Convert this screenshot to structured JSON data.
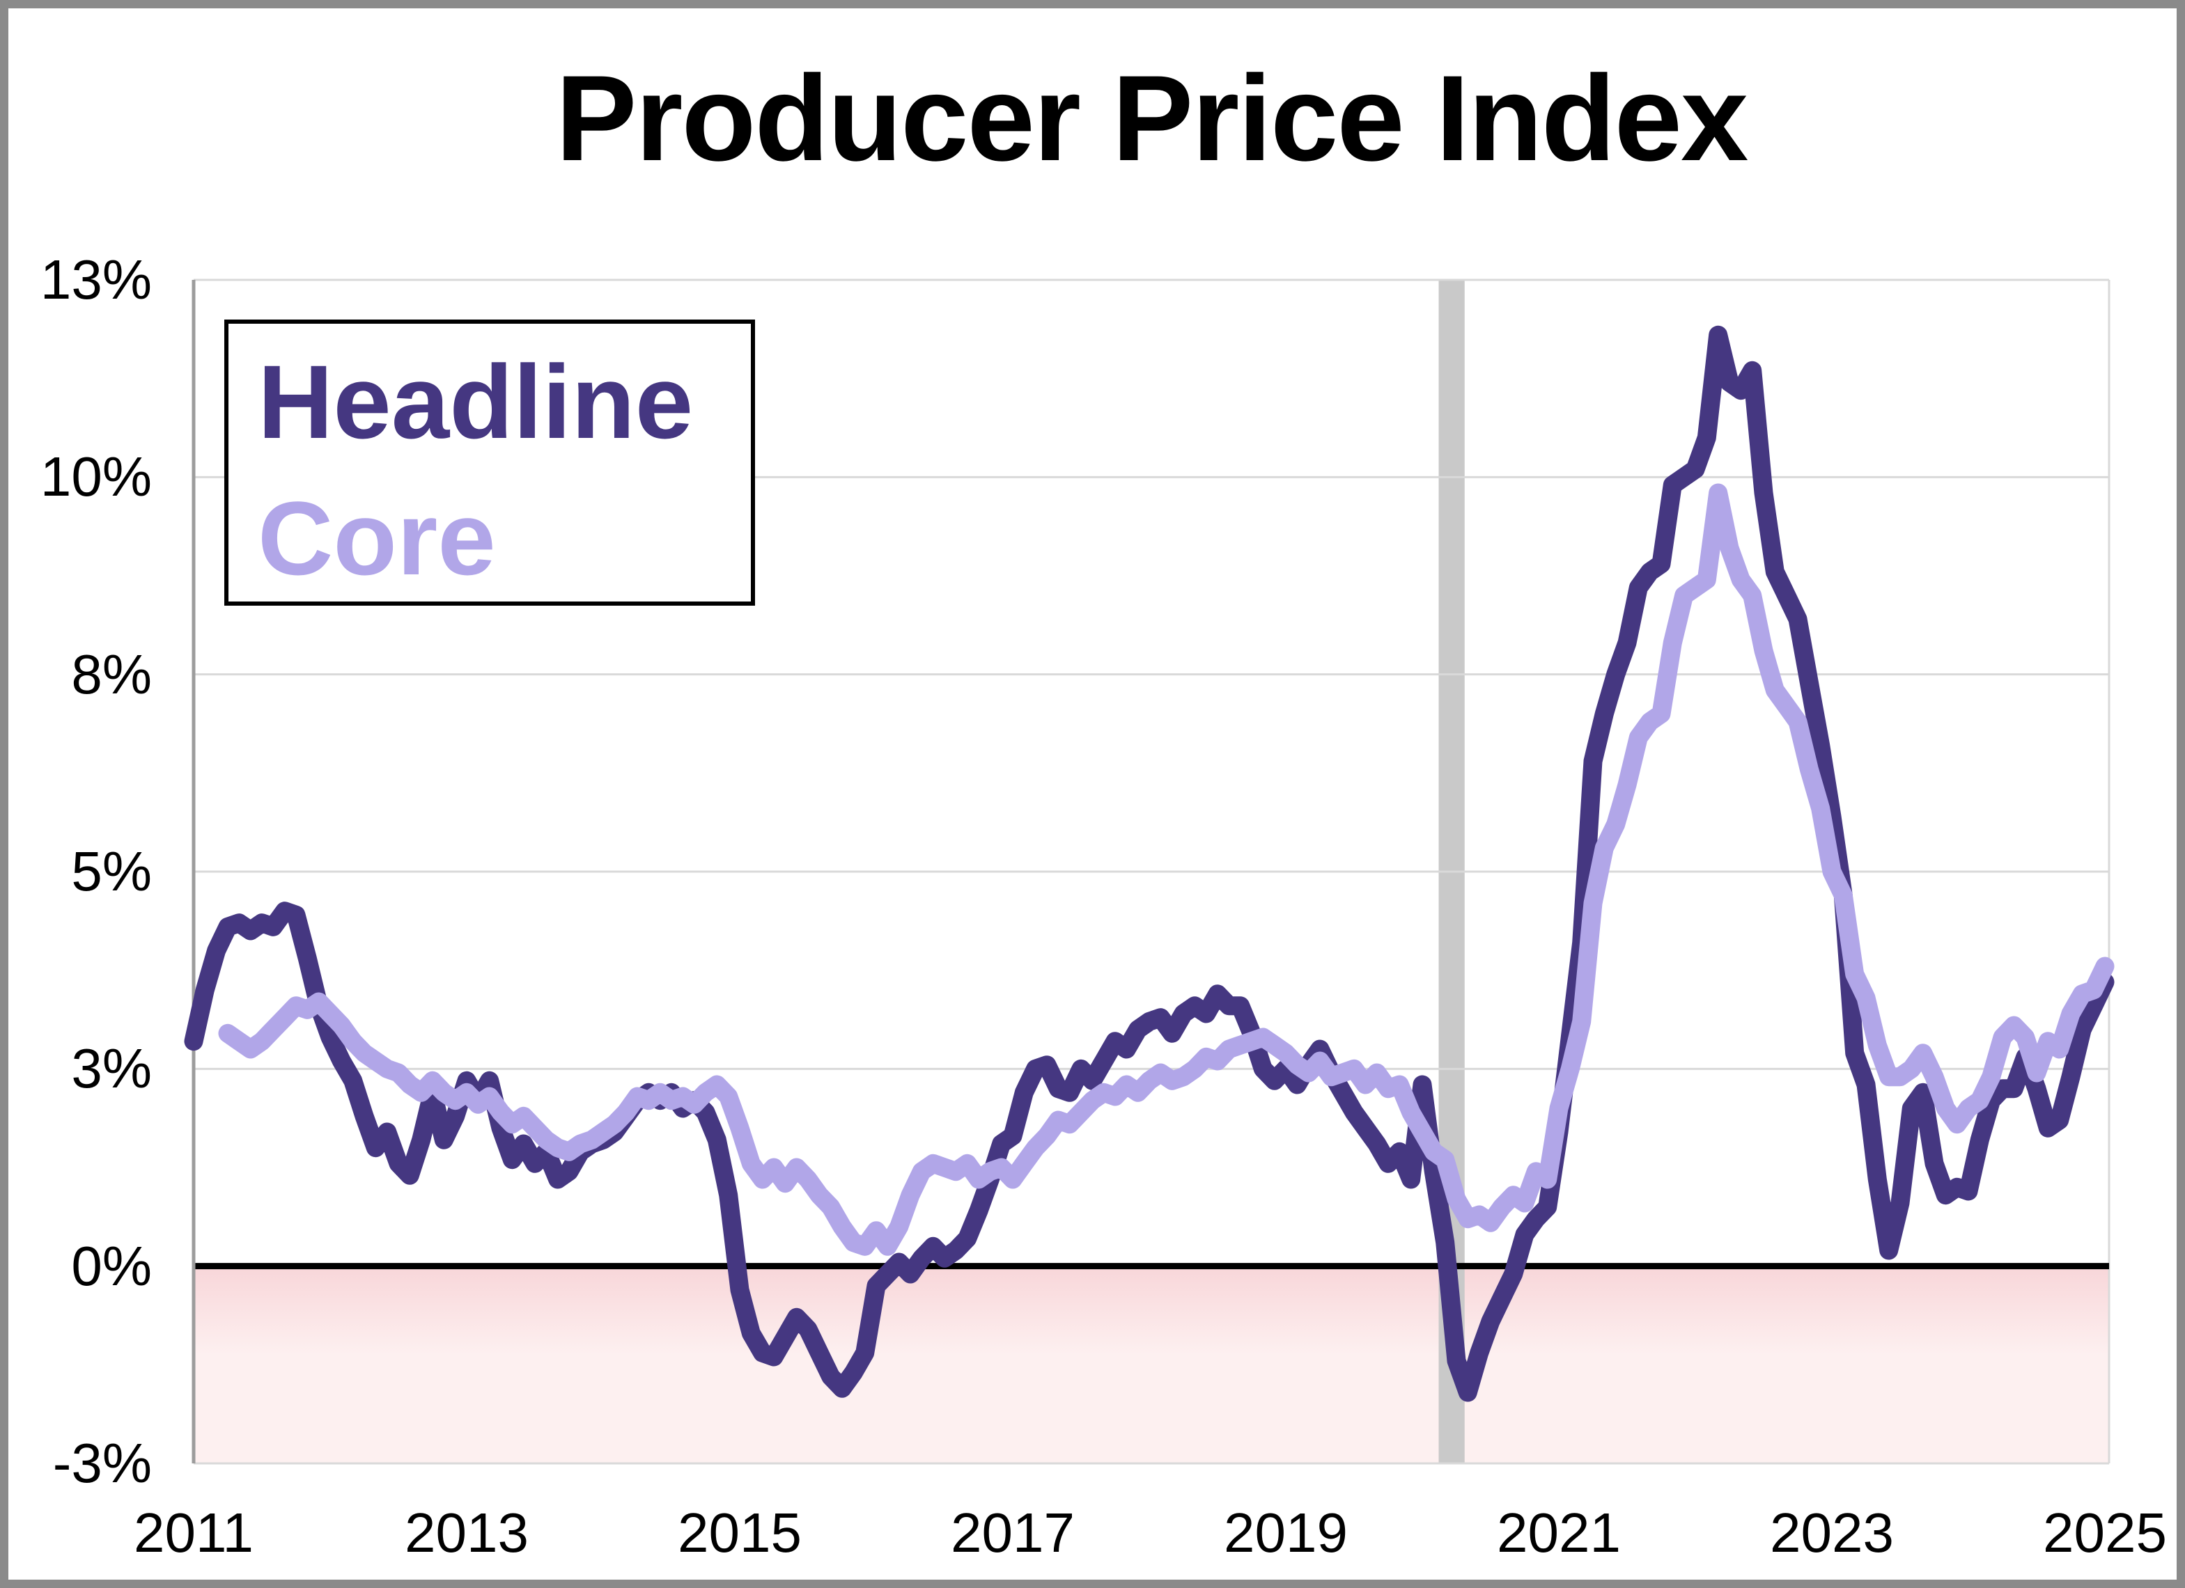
{
  "title": "Producer Price Index",
  "legend": {
    "items": [
      {
        "label": "Headline",
        "color": "#453781"
      },
      {
        "label": "Core",
        "color": "#b1a6e8"
      }
    ]
  },
  "chart_data": {
    "type": "line",
    "title": "Producer Price Index",
    "xlabel": "",
    "ylabel": "",
    "grid": true,
    "legend_position": "top-left",
    "x_axis": {
      "start_year": 2011,
      "end_year": 2025,
      "ticks": [
        {
          "label": "2011",
          "year": 2011
        },
        {
          "label": "2013",
          "year": 2013
        },
        {
          "label": "2015",
          "year": 2015
        },
        {
          "label": "2017",
          "year": 2017
        },
        {
          "label": "2019",
          "year": 2019
        },
        {
          "label": "2021",
          "year": 2021
        },
        {
          "label": "2023",
          "year": 2023
        },
        {
          "label": "2025",
          "year": 2025
        }
      ]
    },
    "y_axis": {
      "min": -2.5,
      "max": 12.5,
      "unit": "percent",
      "ticks": [
        {
          "label": "13%",
          "value": 12.5
        },
        {
          "label": "10%",
          "value": 10
        },
        {
          "label": "8%",
          "value": 7.5
        },
        {
          "label": "5%",
          "value": 5
        },
        {
          "label": "3%",
          "value": 2.5
        },
        {
          "label": "0%",
          "value": 0
        },
        {
          "label": "-3%",
          "value": -2.5
        }
      ]
    },
    "annotations": {
      "recession_band": {
        "start": 2020.12,
        "end": 2020.31,
        "color": "#c9c9c9"
      },
      "zero_line_color": "#000000",
      "negative_region": {
        "top_color": "#f8d6d9",
        "bottom_color": "#fdf0f0"
      }
    },
    "series": [
      {
        "name": "Headline",
        "color": "#453781",
        "start_year": 2011,
        "start_month": 1,
        "freq": "monthly",
        "values": [
          2.85,
          3.5,
          4.0,
          4.3,
          4.35,
          4.25,
          4.35,
          4.3,
          4.5,
          4.45,
          3.9,
          3.3,
          2.9,
          2.6,
          2.35,
          1.9,
          1.5,
          1.7,
          1.3,
          1.15,
          1.6,
          2.2,
          1.6,
          1.9,
          2.35,
          2.1,
          2.35,
          1.75,
          1.35,
          1.55,
          1.3,
          1.45,
          1.1,
          1.2,
          1.45,
          1.55,
          1.6,
          1.7,
          1.9,
          2.1,
          2.2,
          2.1,
          2.2,
          2.0,
          2.1,
          1.95,
          1.6,
          0.9,
          -0.3,
          -0.85,
          -1.1,
          -1.15,
          -0.9,
          -0.65,
          -0.8,
          -1.1,
          -1.4,
          -1.55,
          -1.35,
          -1.1,
          -0.25,
          -0.1,
          0.05,
          -0.1,
          0.1,
          0.25,
          0.1,
          0.2,
          0.35,
          0.7,
          1.1,
          1.55,
          1.65,
          2.2,
          2.5,
          2.55,
          2.25,
          2.2,
          2.5,
          2.35,
          2.6,
          2.85,
          2.75,
          3.0,
          3.1,
          3.15,
          2.95,
          3.2,
          3.3,
          3.2,
          3.45,
          3.3,
          3.3,
          2.95,
          2.5,
          2.35,
          2.5,
          2.3,
          2.55,
          2.75,
          2.45,
          2.2,
          1.95,
          1.75,
          1.55,
          1.3,
          1.45,
          1.1,
          2.3,
          1.2,
          0.3,
          -1.2,
          -1.6,
          -1.1,
          -0.7,
          -0.4,
          -0.1,
          0.4,
          0.6,
          0.75,
          1.7,
          2.9,
          4.1,
          6.4,
          7.0,
          7.5,
          7.9,
          8.6,
          8.8,
          8.9,
          9.9,
          10.0,
          10.1,
          10.5,
          11.8,
          11.2,
          11.1,
          11.35,
          9.8,
          8.8,
          8.5,
          8.2,
          7.4,
          6.6,
          5.7,
          4.7,
          2.7,
          2.3,
          1.1,
          0.2,
          0.8,
          2.0,
          2.2,
          1.3,
          0.9,
          1.0,
          0.95,
          1.6,
          2.1,
          2.25,
          2.25,
          2.65,
          2.25,
          1.75,
          1.85,
          2.4,
          3.0,
          3.3,
          3.6
        ]
      },
      {
        "name": "Core",
        "color": "#b1a6e8",
        "start_year": 2011,
        "start_month": 4,
        "freq": "monthly",
        "values": [
          2.95,
          2.85,
          2.75,
          2.85,
          3.0,
          3.15,
          3.3,
          3.25,
          3.35,
          3.2,
          3.05,
          2.85,
          2.7,
          2.6,
          2.5,
          2.45,
          2.3,
          2.2,
          2.35,
          2.2,
          2.1,
          2.2,
          2.05,
          2.15,
          1.95,
          1.8,
          1.9,
          1.75,
          1.6,
          1.5,
          1.45,
          1.55,
          1.6,
          1.7,
          1.8,
          1.95,
          2.15,
          2.1,
          2.2,
          2.1,
          2.15,
          2.05,
          2.2,
          2.3,
          2.15,
          1.75,
          1.3,
          1.1,
          1.25,
          1.05,
          1.25,
          1.1,
          0.9,
          0.75,
          0.5,
          0.3,
          0.25,
          0.45,
          0.25,
          0.5,
          0.9,
          1.2,
          1.3,
          1.25,
          1.2,
          1.3,
          1.1,
          1.2,
          1.25,
          1.1,
          1.3,
          1.5,
          1.65,
          1.85,
          1.8,
          1.95,
          2.1,
          2.2,
          2.15,
          2.3,
          2.2,
          2.35,
          2.45,
          2.35,
          2.4,
          2.5,
          2.65,
          2.6,
          2.75,
          2.8,
          2.85,
          2.9,
          2.8,
          2.7,
          2.55,
          2.45,
          2.6,
          2.4,
          2.45,
          2.5,
          2.3,
          2.45,
          2.25,
          2.3,
          1.95,
          1.7,
          1.45,
          1.35,
          0.85,
          0.6,
          0.65,
          0.55,
          0.75,
          0.9,
          0.8,
          1.2,
          1.1,
          2.0,
          2.5,
          3.1,
          4.6,
          5.3,
          5.6,
          6.1,
          6.7,
          6.9,
          7.0,
          7.9,
          8.5,
          8.6,
          8.7,
          9.8,
          9.1,
          8.7,
          8.5,
          7.8,
          7.3,
          7.1,
          6.9,
          6.3,
          5.8,
          5.0,
          4.7,
          3.7,
          3.4,
          2.8,
          2.4,
          2.4,
          2.5,
          2.7,
          2.4,
          2.0,
          1.8,
          2.0,
          2.1,
          2.4,
          2.9,
          3.05,
          2.9,
          2.45,
          2.85,
          2.75,
          3.2,
          3.45,
          3.5,
          3.8
        ]
      }
    ]
  }
}
